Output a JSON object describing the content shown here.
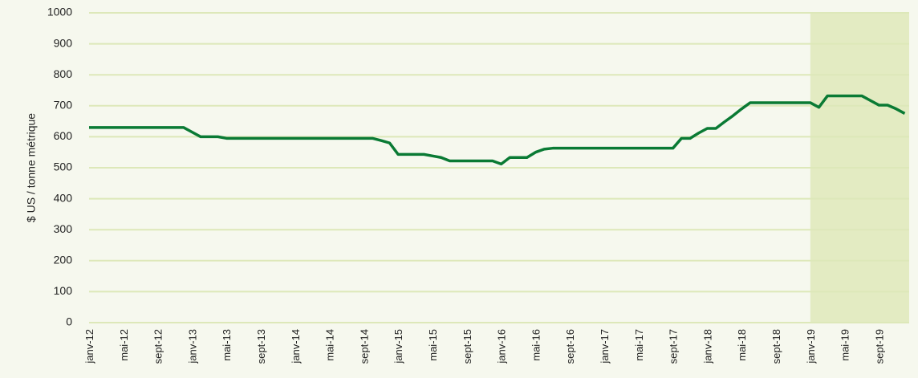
{
  "chart_data": {
    "type": "line",
    "ylabel": "$ US / tonne métrique",
    "categories": [
      "janv-12",
      null,
      null,
      null,
      "mai-12",
      null,
      null,
      null,
      "sept-12",
      null,
      null,
      null,
      "janv-13",
      null,
      null,
      null,
      "mai-13",
      null,
      null,
      null,
      "sept-13",
      null,
      null,
      null,
      "janv-14",
      null,
      null,
      null,
      "mai-14",
      null,
      null,
      null,
      "sept-14",
      null,
      null,
      null,
      "janv-15",
      null,
      null,
      null,
      "mai-15",
      null,
      null,
      null,
      "sept-15",
      null,
      null,
      null,
      "janv-16",
      null,
      null,
      null,
      "mai-16",
      null,
      null,
      null,
      "sept-16",
      null,
      null,
      null,
      "janv-17",
      null,
      null,
      null,
      "mai-17",
      null,
      null,
      null,
      "sept-17",
      null,
      null,
      null,
      "janv-18",
      null,
      null,
      null,
      "mai-18",
      null,
      null,
      null,
      "sept-18",
      null,
      null,
      null,
      "janv-19",
      null,
      null,
      null,
      "mai-19",
      null,
      null,
      null,
      "sept-19",
      null,
      null,
      null
    ],
    "series": [
      {
        "color": "#0a7a34",
        "values": [
          630,
          630,
          630,
          630,
          630,
          630,
          630,
          630,
          630,
          630,
          630,
          630,
          615,
          600,
          600,
          600,
          595,
          595,
          595,
          595,
          595,
          595,
          595,
          595,
          595,
          595,
          595,
          595,
          595,
          595,
          595,
          595,
          595,
          595,
          588,
          580,
          543,
          543,
          543,
          543,
          538,
          533,
          522,
          522,
          522,
          522,
          522,
          522,
          512,
          533,
          533,
          533,
          550,
          560,
          563,
          563,
          563,
          563,
          563,
          563,
          563,
          563,
          563,
          563,
          563,
          563,
          563,
          563,
          563,
          595,
          595,
          612,
          627,
          627,
          648,
          668,
          690,
          710,
          710,
          710,
          710,
          710,
          710,
          710,
          710,
          695,
          732,
          732,
          732,
          732,
          732,
          717,
          702,
          702,
          690,
          675
        ]
      }
    ],
    "ylim": [
      0,
      1000
    ],
    "yticks": [
      0,
      100,
      200,
      300,
      400,
      500,
      600,
      700,
      800,
      900,
      1000
    ],
    "grid": true,
    "shade_from": "janv-19",
    "shade_color": "#e3ebc2"
  }
}
